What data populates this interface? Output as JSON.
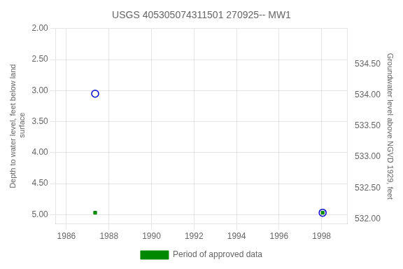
{
  "chart_data": {
    "type": "scatter",
    "title": "USGS 405305074311501 270925-- MW1",
    "ylabel": "Depth to water level, feet below land\n surface",
    "y2label": "Groundwater level above NGVD 1929, feet",
    "xlim": [
      1985.5,
      1999.2
    ],
    "xticks": [
      1986,
      1988,
      1990,
      1992,
      1994,
      1996,
      1998
    ],
    "ylim": [
      5.15,
      2.0
    ],
    "yticks": [
      {
        "value": 2.0,
        "label": "2.00"
      },
      {
        "value": 2.5,
        "label": "2.50"
      },
      {
        "value": 3.0,
        "label": "3.00"
      },
      {
        "value": 3.5,
        "label": "3.50"
      },
      {
        "value": 4.0,
        "label": "4.00"
      },
      {
        "value": 4.5,
        "label": "4.50"
      },
      {
        "value": 5.0,
        "label": "5.00"
      }
    ],
    "y2lim": [
      531.92,
      535.07
    ],
    "y2ticks": [
      {
        "value": 534.5,
        "label": "534.50"
      },
      {
        "value": 534.0,
        "label": "534.00"
      },
      {
        "value": 533.5,
        "label": "533.50"
      },
      {
        "value": 533.0,
        "label": "533.00"
      },
      {
        "value": 532.5,
        "label": "532.50"
      },
      {
        "value": 532.0,
        "label": "532.00"
      }
    ],
    "series": [
      {
        "x": [
          1987.35,
          1998.05
        ],
        "values": [
          3.05,
          4.97
        ],
        "color": "#0000cc",
        "marker": "open_circle"
      },
      {
        "name": "Period of approved data",
        "x": [
          1987.35,
          1998.05
        ],
        "values": [
          4.97,
          4.97
        ],
        "color": "#008800",
        "marker": "square"
      }
    ],
    "grid": true,
    "legend": "bottom"
  }
}
